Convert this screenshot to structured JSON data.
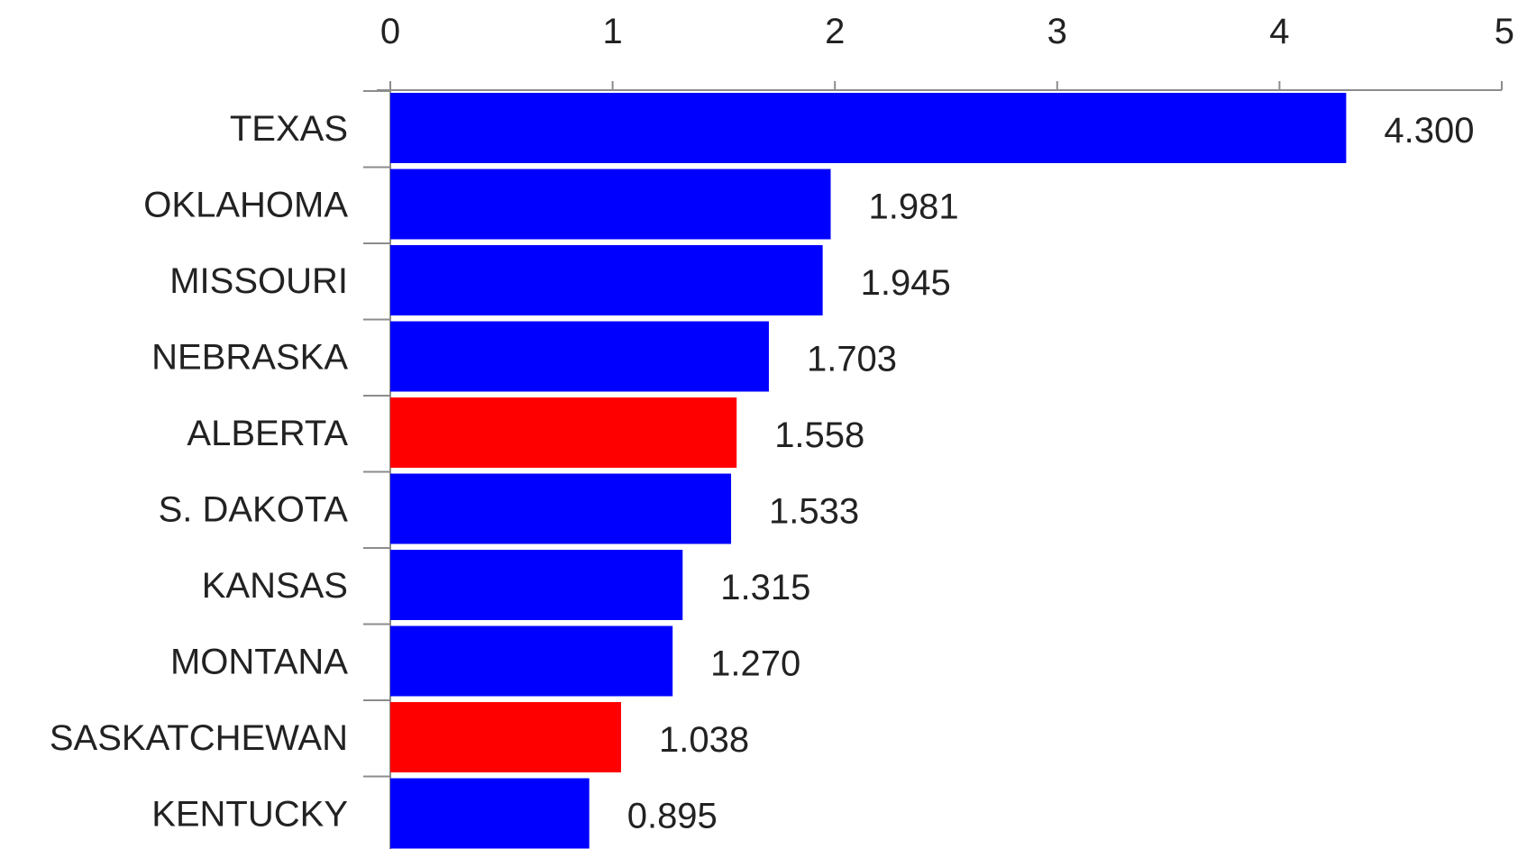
{
  "chart_data": {
    "type": "bar",
    "orientation": "horizontal",
    "categories": [
      "TEXAS",
      "OKLAHOMA",
      "MISSOURI",
      "NEBRASKA",
      "ALBERTA",
      "S. DAKOTA",
      "KANSAS",
      "MONTANA",
      "SASKATCHEWAN",
      "KENTUCKY"
    ],
    "values": [
      4.3,
      1.981,
      1.945,
      1.703,
      1.558,
      1.533,
      1.315,
      1.27,
      1.038,
      0.895
    ],
    "value_labels": [
      "4.300",
      "1.981",
      "1.945",
      "1.703",
      "1.558",
      "1.533",
      "1.315",
      "1.270",
      "1.038",
      "0.895"
    ],
    "bar_colors": [
      "#0000ff",
      "#0000ff",
      "#0000ff",
      "#0000ff",
      "#ff0000",
      "#0000ff",
      "#0000ff",
      "#0000ff",
      "#ff0000",
      "#0000ff"
    ],
    "xlim": [
      0,
      5
    ],
    "x_ticks": [
      0,
      1,
      2,
      3,
      4,
      5
    ],
    "x_tick_labels": [
      "0",
      "1",
      "2",
      "3",
      "4",
      "5"
    ],
    "axis_position": "top",
    "grid": false,
    "legend": "none"
  }
}
